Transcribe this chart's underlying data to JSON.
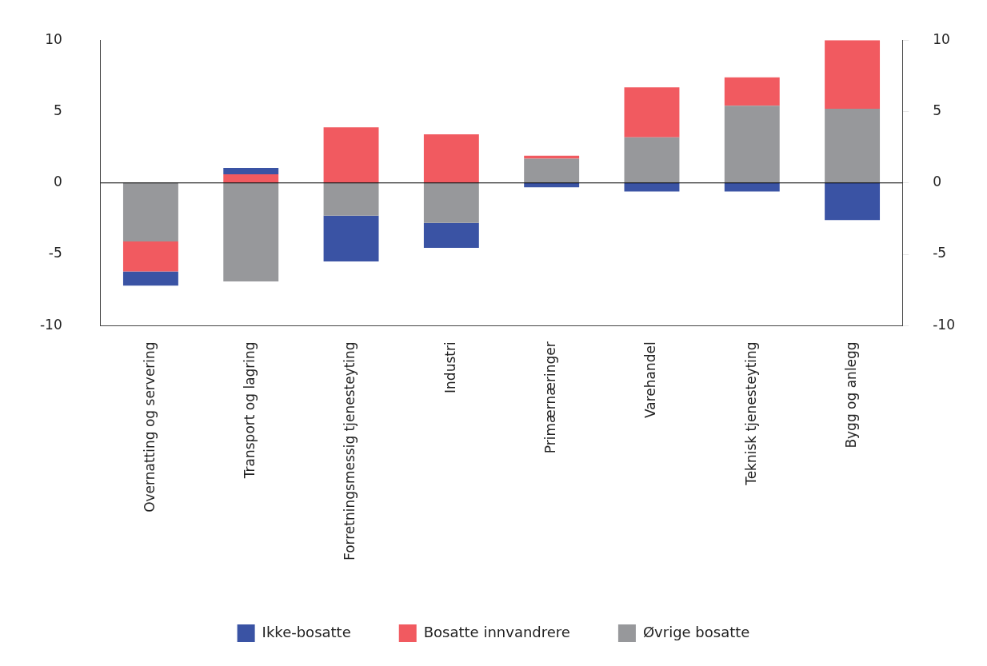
{
  "chart_data": {
    "type": "bar",
    "stacked": true,
    "categories": [
      "Overnatting og servering",
      "Transport og lagring",
      "Forretningsmessig tjenesteyting",
      "Industri",
      "Primærnæringer",
      "Varehandel",
      "Teknisk tjenesteyting",
      "Bygg og anlegg"
    ],
    "series": [
      {
        "name": "Øvrige bosatte",
        "color": "#97989b",
        "values": [
          -4.1,
          -6.9,
          -2.3,
          -2.8,
          1.7,
          3.2,
          5.4,
          5.2
        ]
      },
      {
        "name": "Bosatte innvandrere",
        "color": "#f15a60",
        "values": [
          -2.1,
          0.6,
          3.9,
          3.4,
          0.2,
          3.5,
          2.0,
          4.8
        ]
      },
      {
        "name": "Ikke-bosatte",
        "color": "#3a53a4",
        "values": [
          -1.0,
          0.45,
          -3.2,
          -1.75,
          -0.3,
          -0.6,
          -0.6,
          -2.6
        ]
      }
    ],
    "ylim": [
      -10,
      10
    ],
    "yticks": [
      -10,
      -5,
      0,
      5,
      10
    ],
    "y2lim": [
      -10,
      10
    ],
    "y2ticks": [
      -10,
      -5,
      0,
      5,
      10
    ],
    "ref_lines": [
      {
        "axis": "y",
        "value": 0,
        "color": "#000000"
      }
    ],
    "grid": false,
    "legend": "bottom"
  }
}
